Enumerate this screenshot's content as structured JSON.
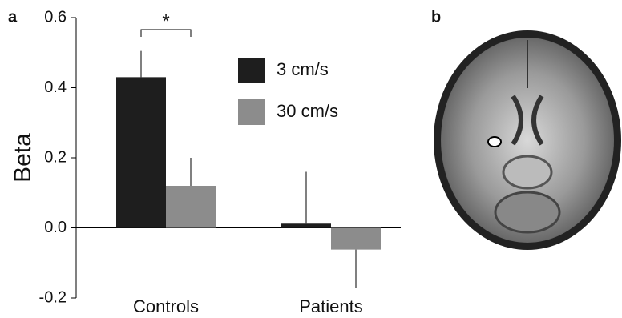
{
  "panel_labels": [
    "a",
    "b"
  ],
  "chart_data": {
    "type": "bar",
    "y_label": "Beta",
    "categories": [
      "Controls",
      "Patients"
    ],
    "series": [
      {
        "name": "3 cm/s",
        "color": "#1e1e1e",
        "values": [
          0.43,
          0.012
        ],
        "errors": [
          0.075,
          0.148
        ]
      },
      {
        "name": "30 cm/s",
        "color": "#8c8c8c",
        "values": [
          0.12,
          -0.062
        ],
        "errors": [
          0.08,
          0.11
        ]
      }
    ],
    "ylim": [
      -0.2,
      0.6
    ],
    "yticks": [
      -0.2,
      {
        "value": 0,
        "label": "0.0"
      },
      0.2,
      0.4,
      0.6
    ],
    "annotations": [
      "*"
    ]
  }
}
